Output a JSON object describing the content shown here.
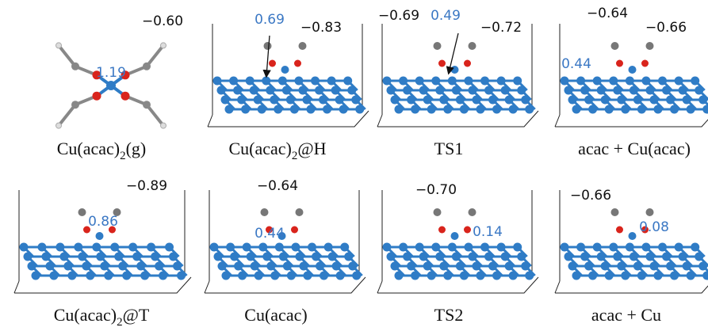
{
  "panels": [
    {
      "label": {
        "text": "Cu(acac)",
        "sub": "2",
        "rest": "(g)"
      },
      "charges": [
        {
          "text": "1.19",
          "color": "#3b78c4"
        },
        {
          "text": "−0.60",
          "color": "#111111"
        }
      ]
    },
    {
      "label": {
        "text": "Cu(acac)",
        "sub": "2",
        "rest": "@H"
      },
      "charges": [
        {
          "text": "0.69",
          "color": "#3b78c4"
        },
        {
          "text": "−0.83",
          "color": "#111111"
        }
      ]
    },
    {
      "label": "TS1",
      "charges": [
        {
          "text": "−0.69",
          "color": "#111111"
        },
        {
          "text": "0.49",
          "color": "#3b78c4"
        },
        {
          "text": "−0.72",
          "color": "#111111"
        }
      ]
    },
    {
      "label": "acac + Cu(acac)",
      "charges": [
        {
          "text": "−0.64",
          "color": "#111111"
        },
        {
          "text": "0.44",
          "color": "#3b78c4"
        },
        {
          "text": "−0.66",
          "color": "#111111"
        }
      ]
    },
    {
      "label": {
        "text": "Cu(acac)",
        "sub": "2",
        "rest": "@T"
      },
      "charges": [
        {
          "text": "−0.89",
          "color": "#111111"
        },
        {
          "text": "0.86",
          "color": "#3b78c4"
        }
      ]
    },
    {
      "label": "Cu(acac)",
      "charges": [
        {
          "text": "−0.64",
          "color": "#111111"
        },
        {
          "text": "0.44",
          "color": "#3b78c4"
        }
      ]
    },
    {
      "label": "TS2",
      "charges": [
        {
          "text": "−0.70",
          "color": "#111111"
        },
        {
          "text": "0.14",
          "color": "#3b78c4"
        }
      ]
    },
    {
      "label": "acac + Cu",
      "charges": [
        {
          "text": "−0.66",
          "color": "#111111"
        },
        {
          "text": "0.08",
          "color": "#3b78c4"
        }
      ]
    }
  ]
}
